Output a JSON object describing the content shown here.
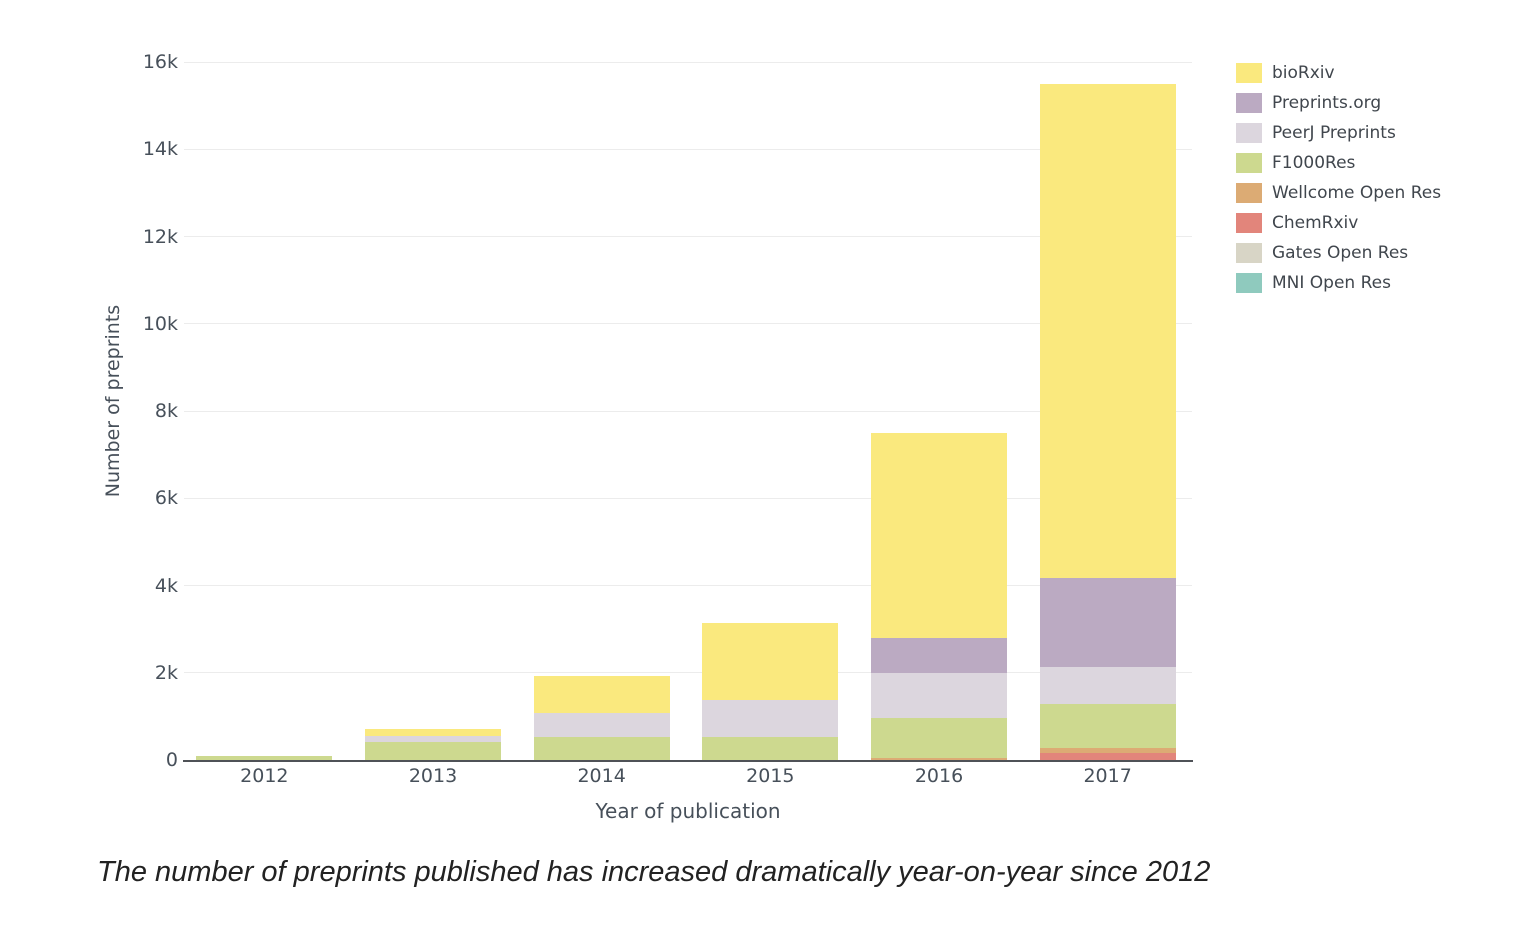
{
  "caption": "The number of preprints published has increased dramatically year-on-year since 2012",
  "chart_data": {
    "type": "bar",
    "stacked": true,
    "title": "",
    "xlabel": "Year of publication",
    "ylabel": "Number of preprints",
    "categories": [
      "2012",
      "2013",
      "2014",
      "2015",
      "2016",
      "2017"
    ],
    "series": [
      {
        "name": "bioRxiv",
        "color": "#fae97e",
        "values": [
          0,
          160,
          850,
          1750,
          4700,
          11320
        ]
      },
      {
        "name": "Preprints.org",
        "color": "#bbaac2",
        "values": [
          0,
          0,
          0,
          0,
          800,
          2040
        ]
      },
      {
        "name": "PeerJ Preprints",
        "color": "#dcd6de",
        "values": [
          0,
          140,
          550,
          850,
          1030,
          850
        ]
      },
      {
        "name": "F1000Res",
        "color": "#cdd98f",
        "values": [
          85,
          420,
          530,
          530,
          920,
          1010
        ]
      },
      {
        "name": "Wellcome Open Res",
        "color": "#dcab74",
        "values": [
          0,
          0,
          0,
          0,
          50,
          120
        ]
      },
      {
        "name": "ChemRxiv",
        "color": "#e2857b",
        "values": [
          0,
          0,
          0,
          0,
          0,
          160
        ]
      },
      {
        "name": "Gates Open Res",
        "color": "#d8d5c6",
        "values": [
          0,
          0,
          0,
          0,
          0,
          0
        ]
      },
      {
        "name": "MNI Open Res",
        "color": "#8fcabe",
        "values": [
          0,
          0,
          0,
          0,
          0,
          0
        ]
      }
    ],
    "stack_order_bottom_to_top": [
      "MNI Open Res",
      "Gates Open Res",
      "ChemRxiv",
      "Wellcome Open Res",
      "F1000Res",
      "PeerJ Preprints",
      "Preprints.org",
      "bioRxiv"
    ],
    "y_ticks": [
      {
        "value": 0,
        "label": "0"
      },
      {
        "value": 2000,
        "label": "2k"
      },
      {
        "value": 4000,
        "label": "4k"
      },
      {
        "value": 6000,
        "label": "6k"
      },
      {
        "value": 8000,
        "label": "8k"
      },
      {
        "value": 10000,
        "label": "10k"
      },
      {
        "value": 12000,
        "label": "12k"
      },
      {
        "value": 14000,
        "label": "14k"
      },
      {
        "value": 16000,
        "label": "16k"
      }
    ],
    "ylim": [
      0,
      16000
    ],
    "grid": "horizontal",
    "legend_position": "top-right"
  }
}
